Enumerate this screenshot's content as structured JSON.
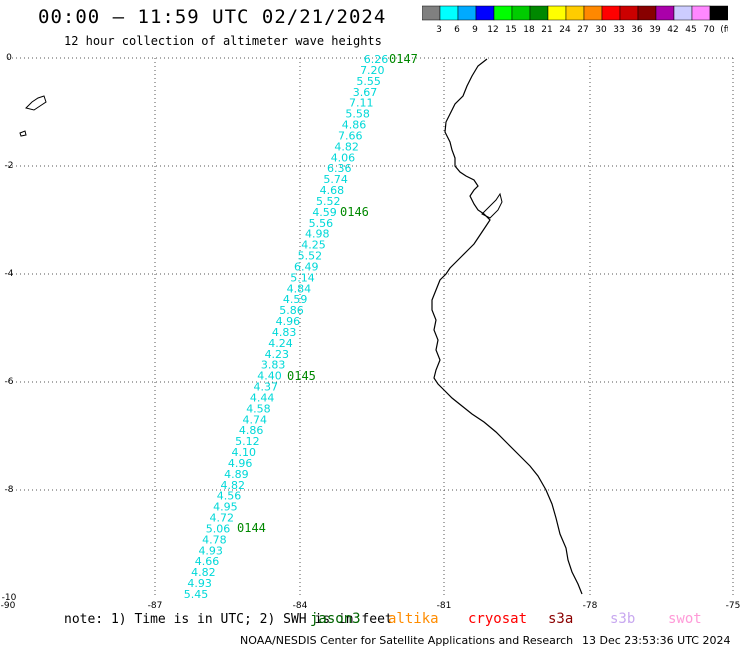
{
  "header": {
    "title": "00:00 – 11:59 UTC 02/21/2024",
    "subtitle": "12 hour collection of altimeter wave heights"
  },
  "color_scale": {
    "labels": [
      "3",
      "6",
      "9",
      "12",
      "15",
      "18",
      "21",
      "24",
      "27",
      "30",
      "33",
      "36",
      "39",
      "42",
      "45",
      "70",
      "(ft)"
    ],
    "colors": [
      "#808080",
      "#00ffff",
      "#00aaff",
      "#0000ff",
      "#00ff00",
      "#00cc00",
      "#008800",
      "#ffff00",
      "#ffcc00",
      "#ff8800",
      "#ff0000",
      "#cc0000",
      "#880000",
      "#aa00aa",
      "#ccccff",
      "#ff88ff",
      "#000000"
    ]
  },
  "map": {
    "lat_labels": [
      "0",
      "-2",
      "-4",
      "-6",
      "-8",
      "-10"
    ],
    "lon_labels": [
      "-90",
      "-87",
      "-84",
      "-81",
      "-78",
      "-75"
    ],
    "coast_color": "#000000",
    "grid_color": "#555555",
    "track_color": "#00d8d8",
    "pass_color": "#008800",
    "pass_labels": [
      "0147",
      "0146",
      "0145",
      "0144"
    ],
    "wave_heights": [
      "6.26",
      "7.20",
      "5.55",
      "3.67",
      "7.11",
      "5.58",
      "4.86",
      "7.66",
      "4.82",
      "4.06",
      "6.36",
      "5.74",
      "4.68",
      "5.52",
      "4.59",
      "5.56",
      "4.98",
      "4.25",
      "5.52",
      "6.49",
      "5.14",
      "4.84",
      "4.59",
      "5.86",
      "4.96",
      "4.83",
      "4.24",
      "4.23",
      "3.83",
      "4.40",
      "4.37",
      "4.44",
      "4.58",
      "4.74",
      "4.86",
      "5.12",
      "4.10",
      "4.96",
      "4.89",
      "4.82",
      "4.56",
      "4.95",
      "4.72",
      "5.06",
      "4.78",
      "4.93",
      "4.66",
      "4.82",
      "4.93",
      "5.45"
    ]
  },
  "footer": {
    "note": "note: 1) Time is in UTC; 2) SWH is in feet",
    "missions": [
      {
        "name": "jason3",
        "color": "#006400"
      },
      {
        "name": "altika",
        "color": "#ff8c00"
      },
      {
        "name": "cryosat",
        "color": "#ff0000"
      },
      {
        "name": "s3a",
        "color": "#8b0000"
      },
      {
        "name": "s3b",
        "color": "#c8a8f0"
      },
      {
        "name": "swot",
        "color": "#ff9ad8"
      }
    ],
    "credit": "NOAA/NESDIS Center for Satellite Applications and Research",
    "timestamp": "13 Dec 23:53:36 UTC 2024"
  }
}
